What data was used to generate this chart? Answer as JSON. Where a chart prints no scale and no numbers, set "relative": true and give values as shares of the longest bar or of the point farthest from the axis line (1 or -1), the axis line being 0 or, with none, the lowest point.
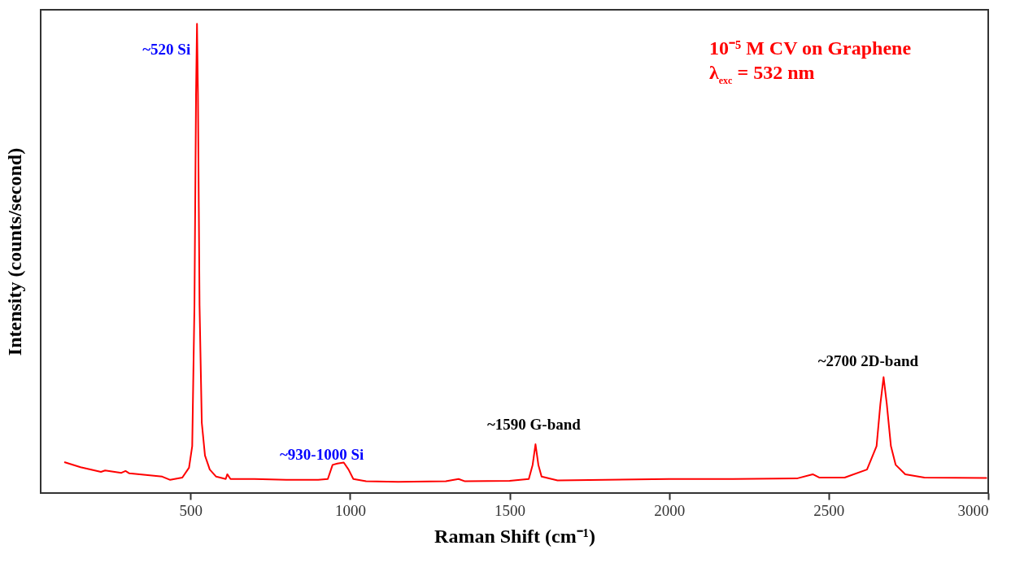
{
  "chart_data": {
    "type": "line",
    "xlabel": "Raman Shift (cm⁻¹)",
    "ylabel": "Intensity (counts/second)",
    "relative": true,
    "grid": false,
    "marker": "none",
    "line_style": "solid",
    "xlim": [
      30,
      3000
    ],
    "xticks": [
      500,
      1000,
      1500,
      2000,
      2500,
      3000
    ],
    "x": [
      104,
      155,
      219,
      232,
      283,
      296,
      308,
      411,
      436,
      474,
      495,
      505,
      512,
      517,
      520,
      523,
      528,
      535,
      545,
      560,
      580,
      610,
      615,
      625,
      700,
      800,
      900,
      930,
      945,
      960,
      980,
      995,
      1010,
      1050,
      1150,
      1300,
      1340,
      1360,
      1500,
      1560,
      1572,
      1581,
      1590,
      1600,
      1650,
      1800,
      2000,
      2200,
      2400,
      2450,
      2470,
      2550,
      2620,
      2650,
      2662,
      2672,
      2682,
      2695,
      2710,
      2740,
      2800,
      2996
    ],
    "series": [
      {
        "color": "#ff0000",
        "values": [
          0.066,
          0.055,
          0.045,
          0.048,
          0.043,
          0.047,
          0.042,
          0.035,
          0.028,
          0.033,
          0.054,
          0.1,
          0.4,
          0.85,
          1,
          0.85,
          0.4,
          0.15,
          0.08,
          0.05,
          0.035,
          0.03,
          0.04,
          0.03,
          0.03,
          0.028,
          0.028,
          0.03,
          0.06,
          0.063,
          0.065,
          0.05,
          0.03,
          0.025,
          0.024,
          0.025,
          0.03,
          0.025,
          0.026,
          0.03,
          0.06,
          0.104,
          0.06,
          0.035,
          0.027,
          0.028,
          0.03,
          0.03,
          0.031,
          0.04,
          0.033,
          0.033,
          0.05,
          0.1,
          0.19,
          0.247,
          0.19,
          0.1,
          0.06,
          0.04,
          0.033,
          0.032
        ]
      }
    ],
    "annotations": [
      {
        "text": "~520 Si",
        "x": 520,
        "y": 1
      },
      {
        "text": "~930-1000 Si",
        "x": 980,
        "y": 0.065
      },
      {
        "text": "~1590 G-band",
        "x": 1581,
        "y": 0.104
      },
      {
        "text": "~2700 2D-band",
        "x": 2672,
        "y": 0.247
      },
      "10⁻⁵ M CV on Graphene",
      "λ$_{exc}$ = 532 nm"
    ]
  }
}
